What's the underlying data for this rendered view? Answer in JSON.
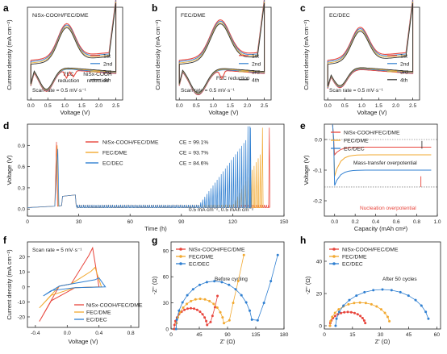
{
  "colors": {
    "red": "#e8453c",
    "blue": "#2f7fd1",
    "orange": "#f2a930",
    "orange2": "#e7b23f",
    "dark": "#333333"
  },
  "panels": {
    "a": {
      "label": "a",
      "title": "NiSx-COOH/FEC/DME",
      "xlabel": "Voltage (V)",
      "ylabel": "Current density (mA cm⁻²)",
      "scan": "Scan rate = 0.5 mV·s⁻¹",
      "ann1": "FEC",
      "ann1b": "reduction",
      "ann2": "NiSx-COOH",
      "ann2b": "reduction",
      "legend": [
        "1st",
        "2nd",
        "3rd",
        "4th"
      ],
      "xticks": [
        "0.0",
        "0.5",
        "1.0",
        "1.5",
        "2.0",
        "2.5"
      ]
    },
    "b": {
      "label": "b",
      "title": "FEC/DME",
      "xlabel": "Voltage (V)",
      "scan": "Scan rate = 0.5 mV·s⁻¹",
      "ann1": "FEC reduction",
      "legend": [
        "1st",
        "2nd",
        "3rd",
        "4th"
      ],
      "xticks": [
        "0.0",
        "0.5",
        "1.0",
        "1.5",
        "2.0",
        "2.5"
      ]
    },
    "c": {
      "label": "c",
      "title": "EC/DEC",
      "xlabel": "Voltage (V)",
      "scan": "Scan rate = 0.5 mV·s⁻¹",
      "legend": [
        "1st",
        "2nd",
        "3rd",
        "4th"
      ],
      "xticks": [
        "0.0",
        "0.5",
        "1.0",
        "1.5",
        "2.0",
        "2.5"
      ]
    },
    "d": {
      "label": "d",
      "xlabel": "Time (h)",
      "ylabel": "Voltage (V)",
      "legend": [
        "NiSx-COOH/FEC/DME",
        "FEC/DME",
        "EC/DEC"
      ],
      "ce": [
        "CE = 99.1%",
        "CE = 93.7%",
        "CE = 84.6%"
      ],
      "cond": "0.5 mA cm⁻², 0.5 mAh cm⁻²",
      "xticks": [
        "0",
        "30",
        "60",
        "90",
        "120",
        "150"
      ],
      "yticks": [
        "0.0",
        "0.3",
        "0.6",
        "0.9"
      ]
    },
    "e": {
      "label": "e",
      "xlabel": "Capacity (mAh cm²)",
      "ylabel": "Voltage (V)",
      "legend": [
        "NiSx-COOH/FEC/DME",
        "FEC/DME",
        "EC/DEC"
      ],
      "ann1": "Mass-transfer overpotential",
      "ann2": "Nucleation overpotential",
      "xticks": [
        "0.0",
        "0.2",
        "0.4",
        "0.6",
        "0.8",
        "1.0"
      ],
      "yticks": [
        "0.0",
        "-0.1",
        "-0.2"
      ]
    },
    "f": {
      "label": "f",
      "xlabel": "Voltage (V)",
      "ylabel": "Current density (mA cm⁻²)",
      "scan": "Scan rate = 5 mV·s⁻¹",
      "legend": [
        "NiSx-COOH/FEC/DME",
        "FEC/DME",
        "EC/DEC"
      ],
      "xticks": [
        "-0.4",
        "0.0",
        "0.4",
        "0.8"
      ],
      "yticks": [
        "-20",
        "-10",
        "0",
        "10",
        "20"
      ]
    },
    "g": {
      "label": "g",
      "xlabel": "Z' (Ω)",
      "ylabel": "-Z'' (Ω)",
      "note": "Before cycling",
      "legend": [
        "NiSx-COOH/FEC/DME",
        "FEC/DME",
        "EC/DEC"
      ],
      "xticks": [
        "0",
        "45",
        "90",
        "135",
        "180"
      ],
      "yticks": [
        "0",
        "30",
        "60",
        "90"
      ]
    },
    "h": {
      "label": "h",
      "xlabel": "Z' (Ω)",
      "ylabel": "-Z'' (Ω)",
      "note": "After 50 cycles",
      "legend": [
        "NiSx-COOH/FEC/DME",
        "FEC/DME",
        "EC/DEC"
      ],
      "xticks": [
        "0",
        "15",
        "30",
        "45",
        "60"
      ],
      "yticks": [
        "0",
        "20",
        "40"
      ]
    }
  },
  "chart_data": [
    {
      "panel": "a",
      "type": "line",
      "title": "NiSx-COOH/FEC/DME",
      "xlabel": "Voltage (V)",
      "ylabel": "Current density (mA cm⁻²)",
      "xlim": [
        -0.1,
        2.7
      ],
      "series": [
        {
          "name": "1st",
          "color": "red"
        },
        {
          "name": "2nd",
          "color": "blue"
        },
        {
          "name": "3rd",
          "color": "orange"
        },
        {
          "name": "4th",
          "color": "dark"
        }
      ],
      "cv": {
        "ox_peak": [
          1.05,
          0.55
        ],
        "red_peak": [
          0.45,
          -0.35
        ],
        "ann_v": [
          1.05,
          1.25
        ]
      }
    },
    {
      "panel": "b",
      "type": "line",
      "title": "FEC/DME",
      "xlabel": "Voltage (V)",
      "xlim": [
        -0.1,
        2.7
      ],
      "series": [
        {
          "name": "1st",
          "color": "red"
        },
        {
          "name": "2nd",
          "color": "blue"
        },
        {
          "name": "3rd",
          "color": "orange"
        },
        {
          "name": "4th",
          "color": "dark"
        }
      ],
      "cv": {
        "ox_peak": [
          1.2,
          0.6
        ],
        "red_peak": [
          0.55,
          -0.4
        ],
        "ann_v": [
          1.25
        ]
      }
    },
    {
      "panel": "c",
      "type": "line",
      "title": "EC/DEC",
      "xlabel": "Voltage (V)",
      "xlim": [
        -0.1,
        2.7
      ],
      "series": [
        {
          "name": "1st",
          "color": "red"
        },
        {
          "name": "2nd",
          "color": "blue"
        },
        {
          "name": "3rd",
          "color": "orange"
        },
        {
          "name": "4th",
          "color": "dark"
        }
      ],
      "cv": {
        "ox_peak": [
          0.95,
          0.5
        ],
        "red_peak": [
          0.35,
          -0.3
        ]
      }
    },
    {
      "panel": "d",
      "type": "line",
      "xlabel": "Time (h)",
      "ylabel": "Voltage (V)",
      "xlim": [
        0,
        150
      ],
      "ylim": [
        -0.1,
        1.2
      ],
      "series": [
        {
          "name": "NiSx-COOH/FEC/DME",
          "ce": 99.1,
          "fail_h": 141
        },
        {
          "name": "FEC/DME",
          "ce": 93.7,
          "fail_h": 137
        },
        {
          "name": "EC/DEC",
          "ce": 84.6,
          "fail_h": 130
        }
      ]
    },
    {
      "panel": "e",
      "type": "line",
      "xlabel": "Capacity (mAh cm²)",
      "ylabel": "Voltage (V)",
      "xlim": [
        -0.1,
        1.0
      ],
      "ylim": [
        -0.25,
        0.05
      ],
      "series": [
        {
          "name": "NiSx-COOH/FEC/DME",
          "plateau": -0.025,
          "nucleation": -0.05
        },
        {
          "name": "FEC/DME",
          "plateau": -0.05,
          "nucleation": -0.12
        },
        {
          "name": "EC/DEC",
          "plateau": -0.1,
          "nucleation": -0.15
        }
      ]
    },
    {
      "panel": "f",
      "type": "line",
      "xlabel": "Voltage (V)",
      "ylabel": "Current density (mA cm⁻²)",
      "xlim": [
        -0.5,
        0.9
      ],
      "ylim": [
        -27,
        30
      ],
      "series": [
        {
          "name": "NiSx-COOH/FEC/DME",
          "peak_ox": [
            0.32,
            26
          ],
          "peak_red": [
            -0.35,
            -23
          ]
        },
        {
          "name": "FEC/DME",
          "peak_ox": [
            0.35,
            13
          ],
          "peak_red": [
            -0.35,
            -14
          ]
        },
        {
          "name": "EC/DEC",
          "peak_ox": [
            0.4,
            6
          ],
          "peak_red": [
            -0.3,
            -6
          ]
        }
      ]
    },
    {
      "panel": "g",
      "type": "scatter",
      "xlabel": "Z' (Ω)",
      "ylabel": "-Z'' (Ω)",
      "xlim": [
        0,
        180
      ],
      "ylim": [
        0,
        100
      ],
      "series": [
        {
          "name": "NiSx-COOH/FEC/DME",
          "r0": 5,
          "rct": 58,
          "tail": [
            [
              63,
              8
            ],
            [
              66,
              15
            ],
            [
              70,
              25
            ],
            [
              74,
              38
            ]
          ]
        },
        {
          "name": "FEC/DME",
          "r0": 8,
          "rct": 85,
          "tail": [
            [
              93,
              10
            ],
            [
              99,
              30
            ],
            [
              107,
              55
            ],
            [
              116,
              85
            ]
          ]
        },
        {
          "name": "EC/DEC",
          "r0": 8,
          "rct": 130,
          "tail": [
            [
              138,
              10
            ],
            [
              148,
              30
            ],
            [
              159,
              55
            ],
            [
              170,
              85
            ]
          ]
        }
      ]
    },
    {
      "panel": "h",
      "type": "scatter",
      "xlabel": "Z' (Ω)",
      "ylabel": "-Z'' (Ω)",
      "xlim": [
        0,
        62
      ],
      "ylim": [
        -2,
        52
      ],
      "series": [
        {
          "name": "NiSx-COOH/FEC/DME",
          "r0": 3,
          "rct": 22
        },
        {
          "name": "FEC/DME",
          "r0": 3,
          "rct": 35
        },
        {
          "name": "EC/DEC",
          "r0": 6,
          "rct": 56
        }
      ]
    }
  ]
}
